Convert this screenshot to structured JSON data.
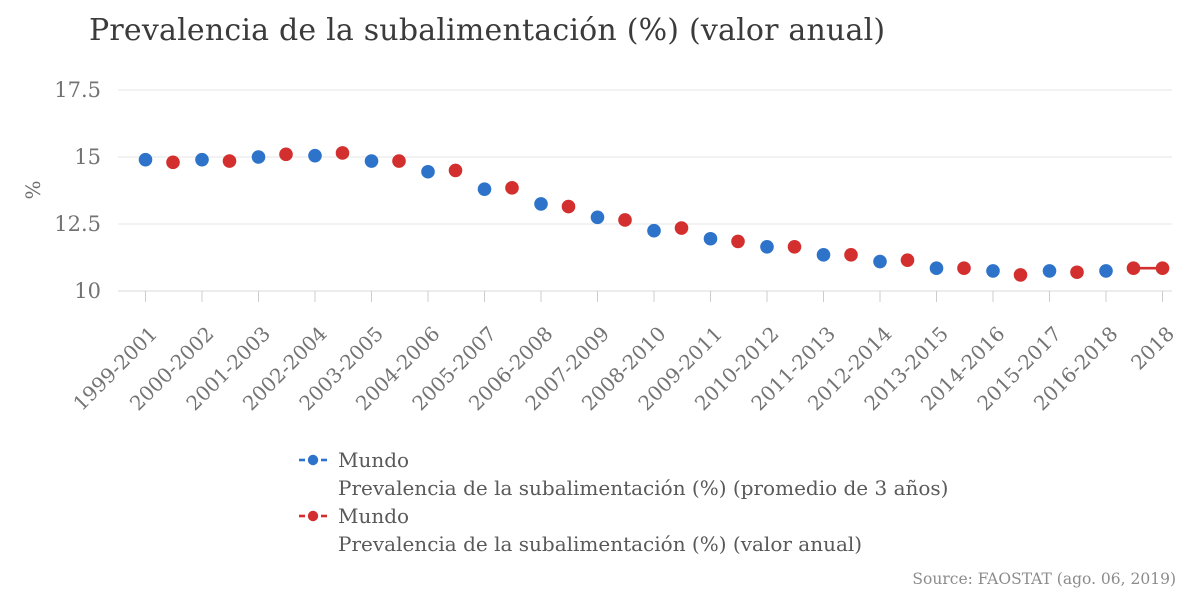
{
  "title": "Prevalencia de la subalimentación (%) (valor anual)",
  "source": "Source: FAOSTAT (ago. 06, 2019)",
  "colors": {
    "blue": "#2d73c9",
    "red": "#d32f2f",
    "grid": "#e5e5e5",
    "axis_line": "#d9d9d9",
    "axis_tick": "#cccccc",
    "tick_label": "#737373",
    "axis_title": "#6b6b6b",
    "title_text": "#3b3b3b",
    "legend_text": "#595959",
    "source_text": "#8c8c8c"
  },
  "chart_data": {
    "type": "scatter",
    "title": "Prevalencia de la subalimentación (%) (valor anual)",
    "xlabel": "",
    "ylabel": "%",
    "ylim": [
      9.6,
      18.2
    ],
    "yticks": [
      "17.5",
      "15",
      "12.5",
      "10"
    ],
    "grid": true,
    "legend_position": "bottom",
    "categories": [
      "1999-2001",
      "2000-2002",
      "2001-2003",
      "2002-2004",
      "2003-2005",
      "2004-2006",
      "2005-2007",
      "2006-2008",
      "2007-2009",
      "2008-2010",
      "2009-2011",
      "2010-2012",
      "2011-2013",
      "2012-2014",
      "2013-2015",
      "2014-2016",
      "2015-2017",
      "2016-2018",
      "2018"
    ],
    "series": [
      {
        "name": "Mundo",
        "description": "Prevalencia de la subalimentación (%) (promedio de 3 años)",
        "color": "#2d73c9",
        "values": [
          14.9,
          14.9,
          15.0,
          15.05,
          14.85,
          14.45,
          13.8,
          13.25,
          12.75,
          12.25,
          11.95,
          11.65,
          11.35,
          11.1,
          10.85,
          10.75,
          10.75,
          10.75,
          null
        ]
      },
      {
        "name": "Mundo",
        "description": "Prevalencia de la subalimentación (%) (valor anual)",
        "color": "#d32f2f",
        "values": [
          14.8,
          14.85,
          15.1,
          15.15,
          14.85,
          14.5,
          13.85,
          13.15,
          12.65,
          12.35,
          11.85,
          11.65,
          11.35,
          11.15,
          10.85,
          10.6,
          10.7,
          10.85,
          10.85
        ]
      }
    ]
  }
}
